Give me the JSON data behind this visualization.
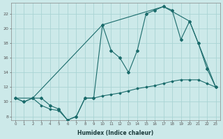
{
  "xlabel": "Humidex (Indice chaleur)",
  "xlim": [
    -0.5,
    23.5
  ],
  "ylim": [
    7.5,
    23.5
  ],
  "xticks": [
    0,
    1,
    2,
    3,
    4,
    5,
    6,
    7,
    8,
    9,
    10,
    11,
    12,
    13,
    14,
    15,
    16,
    17,
    18,
    19,
    20,
    21,
    22,
    23
  ],
  "yticks": [
    8,
    10,
    12,
    14,
    16,
    18,
    20,
    22
  ],
  "background_color": "#cce9e9",
  "grid_color": "#aad4d4",
  "line_color": "#1a6b6b",
  "line1_x": [
    0,
    1,
    2,
    3,
    4,
    5,
    6,
    7,
    8,
    9,
    10,
    11,
    12,
    13,
    14,
    15,
    16,
    17,
    18,
    19,
    20,
    21,
    22,
    23
  ],
  "line1_y": [
    10.5,
    10.0,
    10.5,
    10.5,
    9.5,
    9.0,
    7.5,
    8.0,
    10.5,
    10.5,
    20.5,
    17.0,
    16.0,
    14.0,
    17.0,
    22.0,
    22.5,
    23.0,
    22.5,
    18.5,
    21.0,
    18.0,
    14.5,
    12.0
  ],
  "line2_x": [
    0,
    1,
    2,
    3,
    4,
    5,
    6,
    7,
    8,
    9,
    10,
    11,
    12,
    13,
    14,
    15,
    16,
    17,
    18,
    19,
    20,
    21,
    22,
    23
  ],
  "line2_y": [
    10.5,
    10.0,
    10.5,
    9.5,
    9.0,
    8.8,
    7.5,
    8.0,
    10.5,
    10.5,
    10.8,
    11.0,
    11.2,
    11.5,
    11.8,
    12.0,
    12.2,
    12.5,
    12.8,
    13.0,
    13.0,
    13.0,
    12.5,
    12.0
  ],
  "line3_x": [
    0,
    2,
    10,
    17,
    20,
    23
  ],
  "line3_y": [
    10.5,
    10.5,
    20.5,
    23.0,
    21.0,
    12.0
  ]
}
